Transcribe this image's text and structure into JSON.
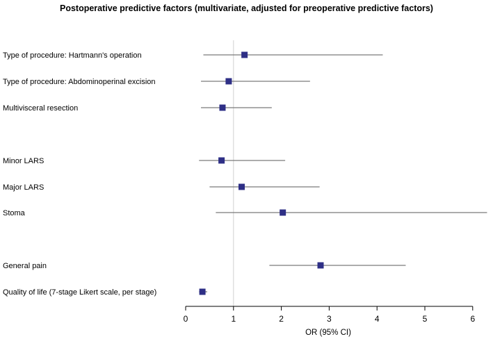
{
  "chart_data": {
    "type": "forest",
    "title": "Postoperative predictive factors (multivariate, adjusted for preoperative predictive factors)",
    "xlabel": "OR (95% CI)",
    "xlim": [
      0,
      6.3
    ],
    "xticks": [
      0,
      1,
      2,
      3,
      4,
      5,
      6
    ],
    "reference_line": 1,
    "marker_color": "#2e2f86",
    "line_color": "#7a7a7a",
    "rows": [
      {
        "label": "Type of procedure: Hartmann's operation",
        "or": 1.23,
        "lo": 0.37,
        "hi": 4.12
      },
      {
        "label": "Type of procedure: Abdominoperinal excision",
        "or": 0.9,
        "lo": 0.32,
        "hi": 2.6
      },
      {
        "label": "Multivisceral resection",
        "or": 0.77,
        "lo": 0.32,
        "hi": 1.8
      },
      {
        "label": "Minor LARS",
        "or": 0.75,
        "lo": 0.28,
        "hi": 2.08
      },
      {
        "label": "Major LARS",
        "or": 1.17,
        "lo": 0.5,
        "hi": 2.8
      },
      {
        "label": "Stoma",
        "or": 2.03,
        "lo": 0.63,
        "hi": 6.3
      },
      {
        "label": "General pain",
        "or": 2.82,
        "lo": 1.75,
        "hi": 4.6
      },
      {
        "label": "Quality of life (7-stage Likert scale, per stage)",
        "or": 0.35,
        "lo": 0.28,
        "hi": 0.45
      }
    ]
  }
}
